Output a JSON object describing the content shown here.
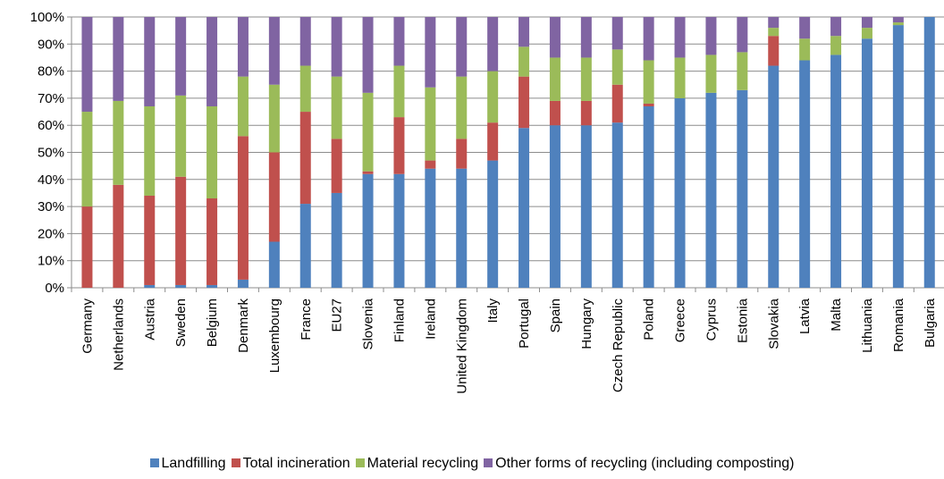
{
  "chart_data": {
    "type": "bar",
    "stacked": true,
    "categories": [
      "Germany",
      "Netherlands",
      "Austria",
      "Sweden",
      "Belgium",
      "Denmark",
      "Luxembourg",
      "France",
      "EU27",
      "Slovenia",
      "Finland",
      "Ireland",
      "United Kingdom",
      "Italy",
      "Portugal",
      "Spain",
      "Hungary",
      "Czech Republic",
      "Poland",
      "Greece",
      "Cyprus",
      "Estonia",
      "Slovakia",
      "Latvia",
      "Malta",
      "Lithuania",
      "Romania",
      "Bulgaria"
    ],
    "series": [
      {
        "name": "Landfilling",
        "color": "#4F81BD",
        "values": [
          0,
          0,
          1,
          1,
          1,
          3,
          17,
          31,
          35,
          42,
          42,
          44,
          44,
          47,
          59,
          60,
          60,
          61,
          67,
          70,
          72,
          73,
          82,
          84,
          86,
          92,
          97,
          100
        ]
      },
      {
        "name": "Total incineration",
        "color": "#C0504D",
        "values": [
          30,
          38,
          33,
          40,
          32,
          53,
          33,
          34,
          20,
          1,
          21,
          3,
          11,
          14,
          19,
          9,
          9,
          14,
          1,
          0,
          0,
          0,
          11,
          0,
          0,
          0,
          0,
          0
        ]
      },
      {
        "name": "Material recycling",
        "color": "#9BBB59",
        "values": [
          35,
          31,
          33,
          30,
          34,
          22,
          25,
          17,
          23,
          29,
          19,
          27,
          23,
          19,
          11,
          16,
          16,
          13,
          16,
          15,
          14,
          14,
          3,
          8,
          7,
          4,
          1,
          0
        ]
      },
      {
        "name": "Other forms of recycling (including composting)",
        "color": "#8064A2",
        "values": [
          35,
          31,
          33,
          29,
          33,
          22,
          25,
          18,
          22,
          28,
          18,
          26,
          22,
          20,
          11,
          15,
          15,
          12,
          16,
          15,
          14,
          13,
          4,
          8,
          7,
          4,
          2,
          0
        ]
      }
    ],
    "y_tick_labels": [
      "0%",
      "10%",
      "20%",
      "30%",
      "40%",
      "50%",
      "60%",
      "70%",
      "80%",
      "90%",
      "100%"
    ],
    "ylim": [
      0,
      100
    ],
    "grid": true,
    "legend_position": "bottom",
    "title": "",
    "xlabel": "",
    "ylabel": ""
  }
}
